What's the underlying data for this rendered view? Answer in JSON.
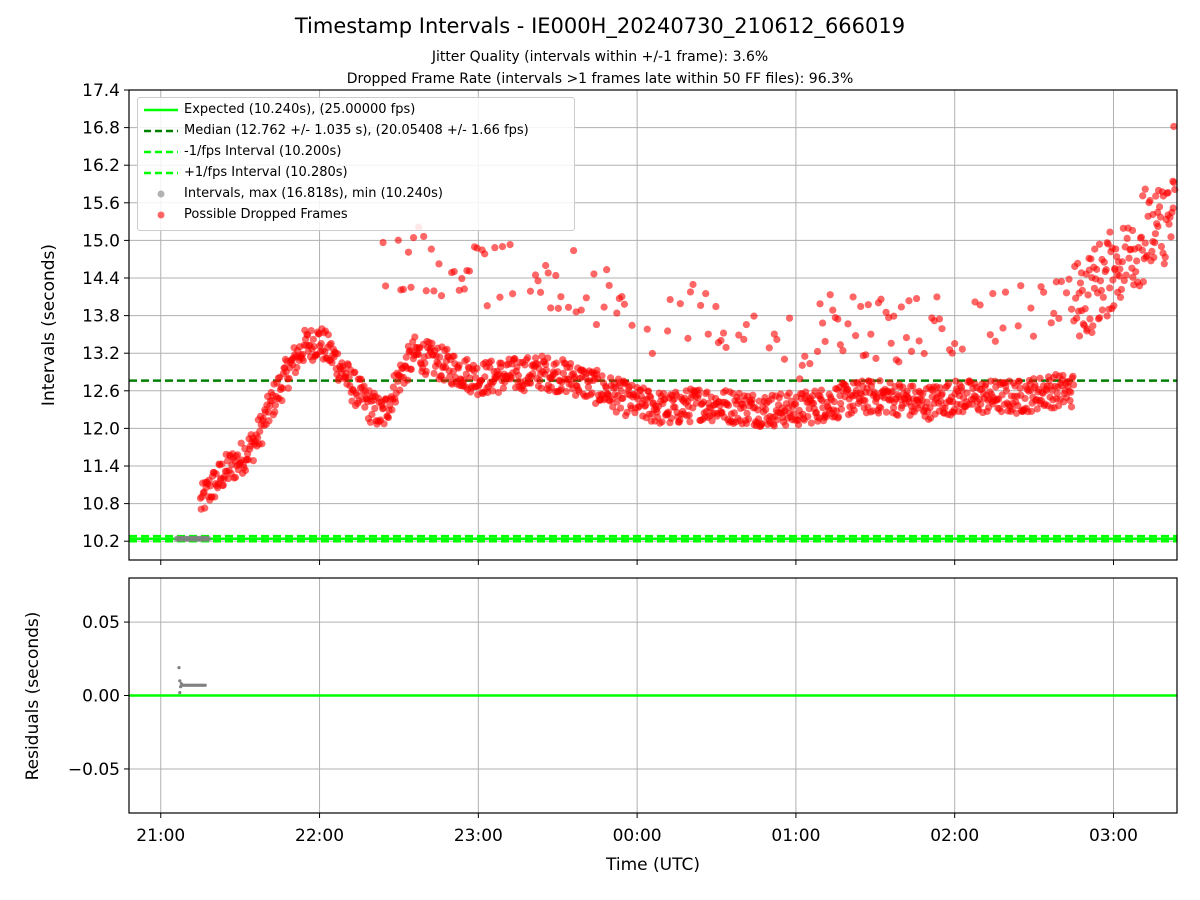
{
  "titles": {
    "main": "Timestamp Intervals - IE000H_20240730_210612_666019",
    "sub1": "Jitter Quality (intervals within +/-1 frame): 3.6%",
    "sub2": "Dropped Frame Rate (intervals >1 frames late within 50 FF files): 96.3%"
  },
  "legend": {
    "expected": "Expected (10.240s), (25.00000 fps)",
    "median": "Median (12.762 +/- 1.035 s), (20.05408 +/- 1.66 fps)",
    "minus_fps": "-1/fps Interval (10.200s)",
    "plus_fps": "+1/fps Interval (10.280s)",
    "intervals": "Intervals, max (16.818s), min (10.240s)",
    "dropped": "Possible Dropped Frames"
  },
  "colors": {
    "expected": "#00ff00",
    "median": "#008000",
    "fps_band": "#00ff00",
    "intervals": "#808080",
    "dropped": "#ff0000",
    "grid": "#b0b0b0"
  },
  "chart_data": [
    {
      "type": "scatter",
      "xlabel": "",
      "ylabel": "Intervals (seconds)",
      "x_ticks": [
        "21:00",
        "22:00",
        "23:00",
        "00:00",
        "01:00",
        "02:00",
        "03:00"
      ],
      "x_range_hours": [
        20.8,
        27.4
      ],
      "yticks": [
        "10.2",
        "10.8",
        "11.4",
        "12.0",
        "12.6",
        "13.2",
        "13.8",
        "14.4",
        "15.0",
        "15.6",
        "16.2",
        "16.8",
        "17.4"
      ],
      "ylim": [
        9.9,
        17.4
      ],
      "grid": true,
      "legend_position": "upper-left",
      "expected": 10.24,
      "median": 12.762,
      "minus_fps": 10.2,
      "plus_fps": 10.28,
      "max_interval": 16.818,
      "min_interval": 10.24,
      "trend": [
        {
          "t": 21.25,
          "y": 10.8
        },
        {
          "t": 21.3,
          "y": 11.0
        },
        {
          "t": 21.4,
          "y": 11.3
        },
        {
          "t": 21.5,
          "y": 11.5
        },
        {
          "t": 21.6,
          "y": 11.8
        },
        {
          "t": 21.7,
          "y": 12.4
        },
        {
          "t": 21.8,
          "y": 12.9
        },
        {
          "t": 21.9,
          "y": 13.3
        },
        {
          "t": 22.0,
          "y": 13.4
        },
        {
          "t": 22.1,
          "y": 13.1
        },
        {
          "t": 22.2,
          "y": 12.7
        },
        {
          "t": 22.3,
          "y": 12.4
        },
        {
          "t": 22.4,
          "y": 12.2
        },
        {
          "t": 22.5,
          "y": 12.8
        },
        {
          "t": 22.6,
          "y": 13.2
        },
        {
          "t": 22.7,
          "y": 13.1
        },
        {
          "t": 22.8,
          "y": 13.0
        },
        {
          "t": 22.9,
          "y": 12.9
        },
        {
          "t": 23.0,
          "y": 12.8
        },
        {
          "t": 23.2,
          "y": 12.85
        },
        {
          "t": 23.4,
          "y": 12.9
        },
        {
          "t": 23.6,
          "y": 12.8
        },
        {
          "t": 23.8,
          "y": 12.6
        },
        {
          "t": 24.0,
          "y": 12.4
        },
        {
          "t": 24.2,
          "y": 12.3
        },
        {
          "t": 24.4,
          "y": 12.4
        },
        {
          "t": 24.6,
          "y": 12.35
        },
        {
          "t": 24.8,
          "y": 12.3
        },
        {
          "t": 25.0,
          "y": 12.3
        },
        {
          "t": 25.2,
          "y": 12.4
        },
        {
          "t": 25.4,
          "y": 12.5
        },
        {
          "t": 25.6,
          "y": 12.5
        },
        {
          "t": 25.8,
          "y": 12.4
        },
        {
          "t": 26.0,
          "y": 12.5
        },
        {
          "t": 26.2,
          "y": 12.5
        },
        {
          "t": 26.4,
          "y": 12.5
        },
        {
          "t": 26.6,
          "y": 12.6
        },
        {
          "t": 26.75,
          "y": 12.6
        }
      ],
      "upper_trend": [
        {
          "t": 22.4,
          "y": 14.6
        },
        {
          "t": 22.6,
          "y": 14.8
        },
        {
          "t": 22.8,
          "y": 14.6
        },
        {
          "t": 23.0,
          "y": 14.5
        },
        {
          "t": 23.2,
          "y": 14.4
        },
        {
          "t": 23.4,
          "y": 14.4
        },
        {
          "t": 23.6,
          "y": 14.3
        },
        {
          "t": 23.8,
          "y": 14.0
        },
        {
          "t": 24.0,
          "y": 13.6
        },
        {
          "t": 24.2,
          "y": 13.6
        },
        {
          "t": 24.4,
          "y": 13.8
        },
        {
          "t": 24.6,
          "y": 13.5
        },
        {
          "t": 24.8,
          "y": 13.4
        },
        {
          "t": 25.0,
          "y": 13.3
        },
        {
          "t": 25.2,
          "y": 13.6
        },
        {
          "t": 25.4,
          "y": 13.6
        },
        {
          "t": 25.6,
          "y": 13.5
        },
        {
          "t": 25.8,
          "y": 13.7
        },
        {
          "t": 26.0,
          "y": 13.6
        },
        {
          "t": 26.2,
          "y": 13.7
        },
        {
          "t": 26.4,
          "y": 13.9
        },
        {
          "t": 26.6,
          "y": 14.1
        },
        {
          "t": 26.8,
          "y": 13.9
        },
        {
          "t": 26.95,
          "y": 14.3
        },
        {
          "t": 27.1,
          "y": 14.9
        },
        {
          "t": 27.2,
          "y": 15.3
        },
        {
          "t": 27.3,
          "y": 15.2
        },
        {
          "t": 27.4,
          "y": 15.3
        }
      ],
      "gray_segment": {
        "t_start": 21.1,
        "t_end": 21.3,
        "y": 10.24
      }
    },
    {
      "type": "scatter",
      "xlabel": "Time (UTC)",
      "ylabel": "Residuals (seconds)",
      "x_ticks": [
        "21:00",
        "22:00",
        "23:00",
        "00:00",
        "01:00",
        "02:00",
        "03:00"
      ],
      "x_range_hours": [
        20.8,
        27.4
      ],
      "yticks": [
        "0.05",
        "0.00",
        "−0.05"
      ],
      "ytick_values": [
        0.05,
        0.0,
        -0.05
      ],
      "ylim": [
        -0.08,
        0.08
      ],
      "grid": true,
      "zero_line": 0.0,
      "residual_points": [
        {
          "t": 21.115,
          "y": 0.019
        },
        {
          "t": 21.12,
          "y": 0.01
        },
        {
          "t": 21.125,
          "y": 0.006
        },
        {
          "t": 21.12,
          "y": 0.002
        },
        {
          "t": 21.13,
          "y": 0.008
        },
        {
          "t": 21.14,
          "y": 0.007
        },
        {
          "t": 21.15,
          "y": 0.007
        },
        {
          "t": 21.16,
          "y": 0.007
        },
        {
          "t": 21.17,
          "y": 0.007
        },
        {
          "t": 21.18,
          "y": 0.007
        },
        {
          "t": 21.19,
          "y": 0.007
        },
        {
          "t": 21.2,
          "y": 0.007
        },
        {
          "t": 21.21,
          "y": 0.007
        },
        {
          "t": 21.22,
          "y": 0.007
        },
        {
          "t": 21.23,
          "y": 0.007
        },
        {
          "t": 21.24,
          "y": 0.007
        },
        {
          "t": 21.25,
          "y": 0.007
        },
        {
          "t": 21.26,
          "y": 0.007
        },
        {
          "t": 21.27,
          "y": 0.007
        },
        {
          "t": 21.28,
          "y": 0.007
        }
      ]
    }
  ]
}
